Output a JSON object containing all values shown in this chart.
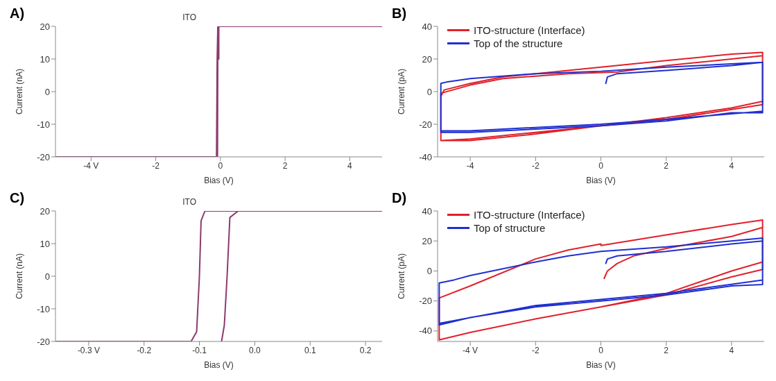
{
  "chart_data": [
    {
      "type": "line",
      "title": "A)",
      "xlabel": "Bias (V)",
      "ylabel": "Current (nA)",
      "xlim": [
        -5.1,
        5
      ],
      "xticks": [
        {
          "value": -4,
          "label": "-4 V"
        },
        -2,
        0,
        2,
        4
      ],
      "ylim": [
        -20,
        20
      ],
      "yticks": [
        -20,
        -10,
        0,
        10,
        20
      ],
      "annotations": [
        "ITO"
      ],
      "series": [
        {
          "color": "#8c3a6e",
          "x": [
            -5.1,
            -0.12,
            -0.1,
            -0.08,
            5
          ],
          "values": [
            -20,
            -20,
            10,
            20,
            20
          ]
        },
        {
          "color": "#8c3a6e",
          "x": [
            -0.09,
            -0.08,
            -0.05,
            -0.05
          ],
          "values": [
            -20,
            17,
            10,
            20
          ]
        }
      ]
    },
    {
      "type": "line",
      "title": "B)",
      "xlabel": "Bias (V)",
      "ylabel": "Current (pA)",
      "xlim": [
        -5,
        5
      ],
      "xticks": [
        -4,
        -2,
        0,
        2,
        4
      ],
      "ylim": [
        -40,
        40
      ],
      "yticks": [
        -40,
        -20,
        0,
        20,
        40
      ],
      "legend": "top left",
      "series": [
        {
          "name": "ITO-structure (Interface)",
          "color": "#e0202a",
          "x": [
            -4.9,
            -4.8,
            -4,
            -3,
            -2,
            0,
            2,
            4,
            4.95,
            4.95,
            4,
            2,
            0,
            -2,
            -4,
            -4.9,
            -4.9,
            -4,
            -3,
            -1,
            0.5,
            2,
            4,
            4.95,
            4.95,
            4,
            2,
            0,
            -2,
            -4,
            -4.9
          ],
          "values": [
            -3,
            1,
            5,
            9,
            11,
            15,
            19,
            23,
            24,
            -6,
            -10,
            -16,
            -21,
            -25,
            -29,
            -30,
            -1,
            4,
            8,
            11,
            12,
            16,
            20,
            22,
            -8,
            -11,
            -17,
            -21,
            -26,
            -30,
            -30
          ]
        },
        {
          "name": "Top of the structure",
          "color": "#1f2fd0",
          "x": [
            0.15,
            0.2,
            0.5,
            2,
            4,
            4.95,
            4.95,
            4,
            2,
            0,
            -2,
            -4,
            -4.9,
            -4.9,
            -4.7,
            -4,
            -2,
            0,
            2,
            4,
            4.95,
            4.95,
            2,
            0,
            -4,
            -4.9
          ],
          "values": [
            5,
            9,
            11,
            13,
            16,
            18,
            -13,
            -13,
            -18,
            -21,
            -23,
            -25,
            -25,
            5,
            6,
            8,
            11,
            12.5,
            15,
            17,
            18,
            -12,
            -17,
            -20,
            -24,
            -24
          ]
        }
      ]
    },
    {
      "type": "line",
      "title": "C)",
      "xlabel": "Bias (V)",
      "ylabel": "Current (nA)",
      "xlim": [
        -0.36,
        0.23
      ],
      "xticks": [
        {
          "value": -0.3,
          "label": "-0.3 V"
        },
        -0.2,
        -0.1,
        {
          "value": 0,
          "label": "0.0"
        },
        0.1,
        0.2
      ],
      "ylim": [
        -20,
        20
      ],
      "yticks": [
        -20,
        -10,
        0,
        10,
        20
      ],
      "annotations": [
        "ITO"
      ],
      "series": [
        {
          "color": "#8c3a6e",
          "x": [
            -0.36,
            -0.115,
            -0.105,
            -0.1,
            -0.097,
            -0.09,
            0.23
          ],
          "values": [
            -20,
            -20,
            -17,
            0,
            17,
            20,
            20
          ]
        },
        {
          "color": "#8c3a6e",
          "x": [
            -0.06,
            -0.055,
            -0.05,
            -0.045,
            -0.03
          ],
          "values": [
            -20,
            -15,
            0,
            18,
            20
          ]
        }
      ]
    },
    {
      "type": "line",
      "title": "D)",
      "xlabel": "Bias (V)",
      "ylabel": "Current (pA)",
      "xlim": [
        -5,
        5
      ],
      "xticks": [
        {
          "value": -4,
          "label": "-4 V"
        },
        -2,
        0,
        2,
        4
      ],
      "ylim": [
        -47,
        40
      ],
      "yticks": [
        -40,
        -20,
        0,
        20,
        40
      ],
      "legend": "top left",
      "series": [
        {
          "name": "ITO-structure (Interface)",
          "color": "#e0202a",
          "x": [
            0.1,
            0.2,
            0.5,
            1,
            2,
            4,
            4.95,
            4.95,
            4,
            2,
            0,
            -2,
            -4,
            -4.95,
            -4.95,
            -4,
            -2,
            -1,
            0,
            0,
            2,
            4,
            4.95,
            4.95,
            4,
            2,
            0,
            -2,
            -4,
            -4.95
          ],
          "values": [
            -5,
            0,
            5,
            10,
            15,
            23,
            29,
            6,
            0,
            -15,
            -24,
            -32,
            -41,
            -46,
            -18,
            -10,
            8,
            14,
            18,
            17,
            24,
            31,
            34,
            1,
            -4,
            -16,
            -24,
            -32,
            -41,
            -46
          ]
        },
        {
          "name": "Top of structure",
          "color": "#1f2fd0",
          "x": [
            0.15,
            0.2,
            0.5,
            2,
            4,
            4.95,
            4.95,
            4,
            2,
            0,
            -2,
            -4,
            -4.95,
            -4.95,
            -4.5,
            -4,
            -2,
            -1,
            0,
            2,
            4,
            4.95,
            4.95,
            2,
            -2,
            -4.95
          ],
          "values": [
            5,
            8,
            10,
            13,
            18,
            20,
            -9,
            -10,
            -16,
            -20,
            -24,
            -31,
            -36,
            -8,
            -6,
            -3,
            6,
            10,
            13,
            16,
            20,
            22,
            -6,
            -15,
            -23,
            -35
          ]
        }
      ]
    }
  ]
}
